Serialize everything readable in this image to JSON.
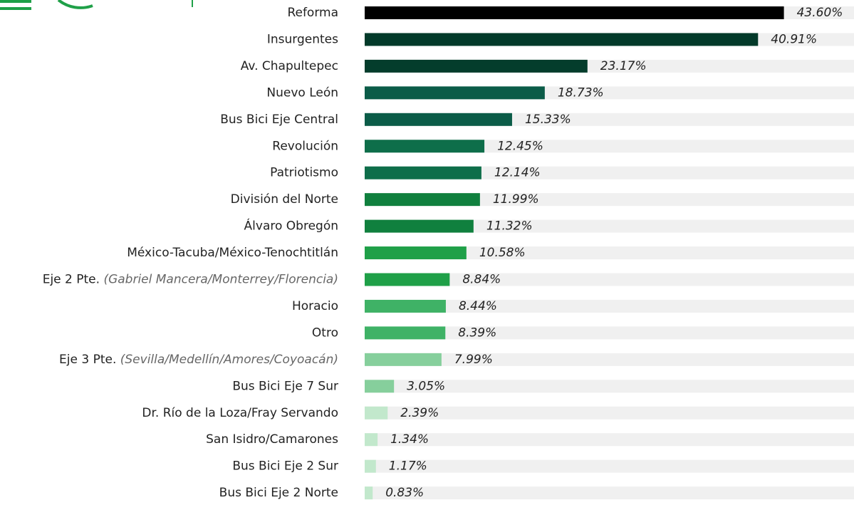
{
  "chart_data": {
    "type": "bar",
    "orientation": "horizontal",
    "categories": [
      "Reforma",
      "Insurgentes",
      "Av. Chapultepec",
      "Nuevo León",
      "Bus Bici Eje Central",
      "Revolución",
      "Patriotismo",
      "División del Norte",
      "Álvaro Obregón",
      "México-Tacuba/México-Tenochtitlán",
      {
        "name": "Eje 2 Pte.",
        "note": "(Gabriel Mancera/Monterrey/Florencia)"
      },
      "Horacio",
      "Otro",
      {
        "name": "Eje 3 Pte.",
        "note": "(Sevilla/Medellín/Amores/Coyoacán)"
      },
      "Bus Bici Eje 7 Sur",
      "Dr. Río de la Loza/Fray Servando",
      "San Isidro/Camarones",
      "Bus Bici Eje 2 Sur",
      "Bus Bici Eje 2 Norte"
    ],
    "values": [
      43.6,
      40.91,
      23.17,
      18.73,
      15.33,
      12.45,
      12.14,
      11.99,
      11.32,
      10.58,
      8.84,
      8.44,
      8.39,
      7.99,
      3.05,
      2.39,
      1.34,
      1.17,
      0.83
    ],
    "value_labels": [
      "43.60%",
      "40.91%",
      "23.17%",
      "18.73%",
      "15.33%",
      "12.45%",
      "12.14%",
      "11.99%",
      "11.32%",
      "10.58%",
      "8.84%",
      "8.44%",
      "8.39%",
      "7.99%",
      "3.05%",
      "2.39%",
      "1.34%",
      "1.17%",
      "0.83%"
    ],
    "colors": [
      "#000000",
      "#033a2a",
      "#043d2c",
      "#0b5c48",
      "#0b5c48",
      "#0e6e4a",
      "#0e6e4a",
      "#10803e",
      "#10803e",
      "#1fa048",
      "#1fa048",
      "#3fb266",
      "#3fb266",
      "#86cf9c",
      "#86cf9c",
      "#c2e8cc",
      "#c2e8cc",
      "#c2e8cc",
      "#c2e8cc"
    ],
    "xlim": [
      0,
      50
    ]
  }
}
